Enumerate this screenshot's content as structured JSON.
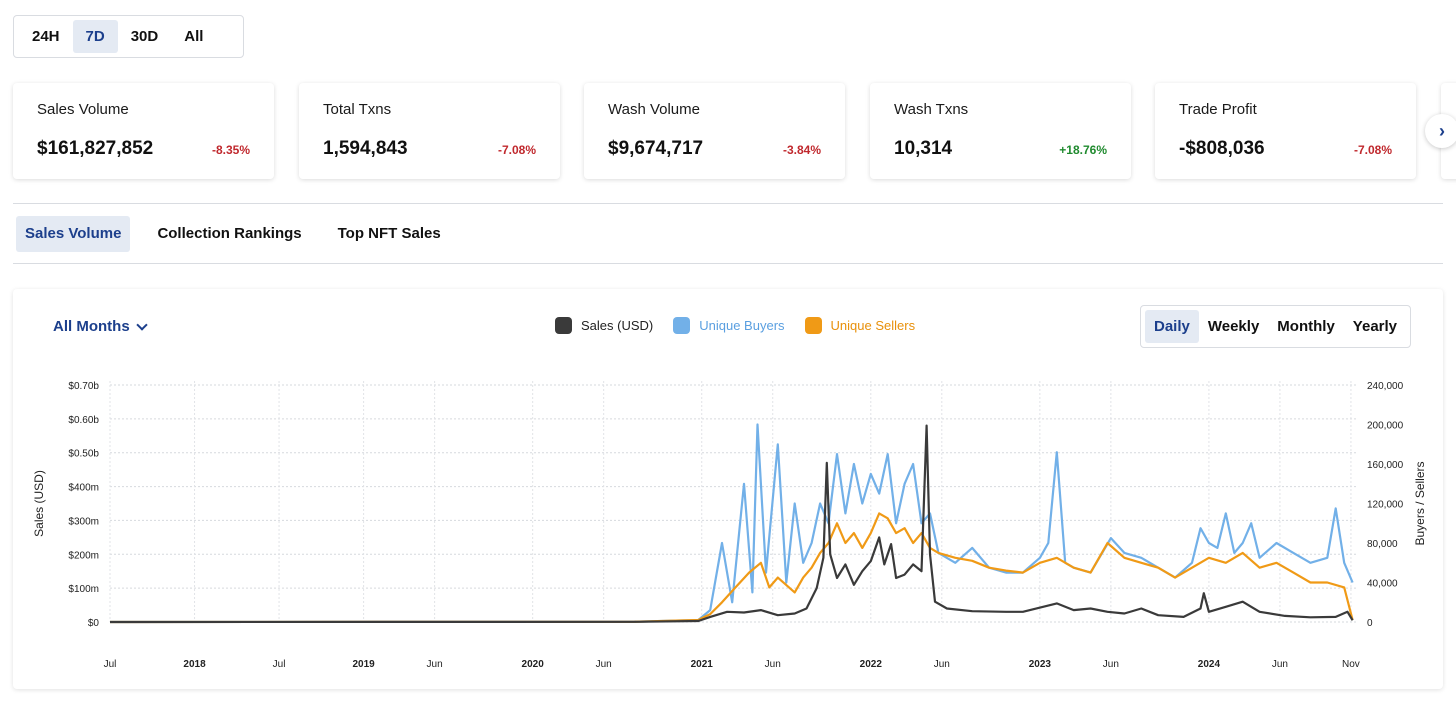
{
  "period_selector": {
    "options": [
      "24H",
      "7D",
      "30D",
      "All"
    ],
    "selected": "7D"
  },
  "stats": [
    {
      "title": "Sales Volume",
      "value": "$161,827,852",
      "change": "-8.35%",
      "direction": "down"
    },
    {
      "title": "Total Txns",
      "value": "1,594,843",
      "change": "-7.08%",
      "direction": "down"
    },
    {
      "title": "Wash Volume",
      "value": "$9,674,717",
      "change": "-3.84%",
      "direction": "down"
    },
    {
      "title": "Wash Txns",
      "value": "10,314",
      "change": "+18.76%",
      "direction": "up"
    },
    {
      "title": "Trade Profit",
      "value": "-$808,036",
      "change": "-7.08%",
      "direction": "down"
    }
  ],
  "next_icon": "chevron-right-icon",
  "tabs": [
    {
      "label": "Sales Volume",
      "active": true
    },
    {
      "label": "Collection Rankings",
      "active": false
    },
    {
      "label": "Top NFT Sales",
      "active": false
    }
  ],
  "chart_panel": {
    "months_filter": "All Months",
    "legend": [
      {
        "label": "Sales (USD)",
        "color": "#3a3a3a"
      },
      {
        "label": "Unique Buyers",
        "color": "#72b0e8"
      },
      {
        "label": "Unique Sellers",
        "color": "#f09a16"
      }
    ],
    "granularity": {
      "options": [
        "Daily",
        "Weekly",
        "Monthly",
        "Yearly"
      ],
      "selected": "Daily"
    }
  },
  "chart_data": {
    "type": "line",
    "ylabel": "Sales (USD)",
    "y2label": "Buyers / Sellers",
    "y_ticks": [
      "$0",
      "$100m",
      "$200m",
      "$300m",
      "$400m",
      "$0.50b",
      "$0.60b",
      "$0.70b"
    ],
    "y2_ticks": [
      "0",
      "40,000",
      "80,000",
      "120,000",
      "160,000",
      "200,000",
      "240,000"
    ],
    "x_ticks": [
      {
        "label": "Jul",
        "bold": false,
        "t": 2017.5
      },
      {
        "label": "2018",
        "bold": true,
        "t": 2018.0
      },
      {
        "label": "Jul",
        "bold": false,
        "t": 2018.5
      },
      {
        "label": "2019",
        "bold": true,
        "t": 2019.0
      },
      {
        "label": "Jun",
        "bold": false,
        "t": 2019.42
      },
      {
        "label": "2020",
        "bold": true,
        "t": 2020.0
      },
      {
        "label": "Jun",
        "bold": false,
        "t": 2020.42
      },
      {
        "label": "2021",
        "bold": true,
        "t": 2021.0
      },
      {
        "label": "Jun",
        "bold": false,
        "t": 2021.42
      },
      {
        "label": "2022",
        "bold": true,
        "t": 2022.0
      },
      {
        "label": "Jun",
        "bold": false,
        "t": 2022.42
      },
      {
        "label": "2023",
        "bold": true,
        "t": 2023.0
      },
      {
        "label": "Jun",
        "bold": false,
        "t": 2023.42
      },
      {
        "label": "2024",
        "bold": true,
        "t": 2024.0
      },
      {
        "label": "Jun",
        "bold": false,
        "t": 2024.42
      },
      {
        "label": "Nov",
        "bold": false,
        "t": 2024.84
      }
    ],
    "x_range": [
      2017.5,
      2024.87
    ],
    "y_range_usd": [
      0,
      700000000
    ],
    "y2_range": [
      0,
      240000
    ],
    "series": [
      {
        "name": "Sales (USD)",
        "axis": "left",
        "color": "#3a3a3a",
        "points": [
          [
            2017.5,
            0
          ],
          [
            2020.6,
            500000
          ],
          [
            2020.98,
            3000000
          ],
          [
            2021.05,
            15000000
          ],
          [
            2021.15,
            30000000
          ],
          [
            2021.25,
            28000000
          ],
          [
            2021.35,
            35000000
          ],
          [
            2021.45,
            20000000
          ],
          [
            2021.55,
            25000000
          ],
          [
            2021.62,
            40000000
          ],
          [
            2021.68,
            100000000
          ],
          [
            2021.72,
            190000000
          ],
          [
            2021.74,
            470000000
          ],
          [
            2021.76,
            200000000
          ],
          [
            2021.8,
            130000000
          ],
          [
            2021.85,
            170000000
          ],
          [
            2021.9,
            110000000
          ],
          [
            2021.95,
            150000000
          ],
          [
            2022.0,
            180000000
          ],
          [
            2022.05,
            250000000
          ],
          [
            2022.08,
            170000000
          ],
          [
            2022.12,
            230000000
          ],
          [
            2022.15,
            130000000
          ],
          [
            2022.2,
            140000000
          ],
          [
            2022.25,
            170000000
          ],
          [
            2022.3,
            150000000
          ],
          [
            2022.33,
            580000000
          ],
          [
            2022.35,
            200000000
          ],
          [
            2022.38,
            60000000
          ],
          [
            2022.45,
            40000000
          ],
          [
            2022.6,
            32000000
          ],
          [
            2022.8,
            30000000
          ],
          [
            2022.9,
            30000000
          ],
          [
            2023.1,
            55000000
          ],
          [
            2023.2,
            35000000
          ],
          [
            2023.3,
            40000000
          ],
          [
            2023.4,
            30000000
          ],
          [
            2023.5,
            25000000
          ],
          [
            2023.6,
            40000000
          ],
          [
            2023.7,
            20000000
          ],
          [
            2023.85,
            15000000
          ],
          [
            2023.95,
            40000000
          ],
          [
            2023.97,
            85000000
          ],
          [
            2024.0,
            30000000
          ],
          [
            2024.1,
            45000000
          ],
          [
            2024.2,
            60000000
          ],
          [
            2024.25,
            45000000
          ],
          [
            2024.3,
            30000000
          ],
          [
            2024.45,
            18000000
          ],
          [
            2024.6,
            14000000
          ],
          [
            2024.75,
            15000000
          ],
          [
            2024.82,
            30000000
          ],
          [
            2024.85,
            5000000
          ]
        ]
      },
      {
        "name": "Unique Buyers",
        "axis": "right",
        "color": "#72b0e8",
        "points": [
          [
            2017.5,
            0
          ],
          [
            2020.6,
            200
          ],
          [
            2020.98,
            2000
          ],
          [
            2021.05,
            12000
          ],
          [
            2021.12,
            80000
          ],
          [
            2021.18,
            20000
          ],
          [
            2021.25,
            140000
          ],
          [
            2021.3,
            30000
          ],
          [
            2021.33,
            200000
          ],
          [
            2021.38,
            50000
          ],
          [
            2021.45,
            180000
          ],
          [
            2021.5,
            40000
          ],
          [
            2021.55,
            120000
          ],
          [
            2021.6,
            60000
          ],
          [
            2021.65,
            80000
          ],
          [
            2021.7,
            120000
          ],
          [
            2021.75,
            100000
          ],
          [
            2021.8,
            170000
          ],
          [
            2021.85,
            110000
          ],
          [
            2021.9,
            160000
          ],
          [
            2021.95,
            120000
          ],
          [
            2022.0,
            150000
          ],
          [
            2022.05,
            130000
          ],
          [
            2022.1,
            170000
          ],
          [
            2022.15,
            100000
          ],
          [
            2022.2,
            140000
          ],
          [
            2022.25,
            160000
          ],
          [
            2022.3,
            100000
          ],
          [
            2022.35,
            110000
          ],
          [
            2022.4,
            70000
          ],
          [
            2022.5,
            60000
          ],
          [
            2022.6,
            75000
          ],
          [
            2022.7,
            55000
          ],
          [
            2022.8,
            50000
          ],
          [
            2022.9,
            50000
          ],
          [
            2023.0,
            65000
          ],
          [
            2023.05,
            80000
          ],
          [
            2023.1,
            172000
          ],
          [
            2023.15,
            60000
          ],
          [
            2023.2,
            55000
          ],
          [
            2023.3,
            50000
          ],
          [
            2023.42,
            85000
          ],
          [
            2023.5,
            70000
          ],
          [
            2023.6,
            65000
          ],
          [
            2023.7,
            55000
          ],
          [
            2023.8,
            45000
          ],
          [
            2023.9,
            60000
          ],
          [
            2023.95,
            95000
          ],
          [
            2024.0,
            80000
          ],
          [
            2024.05,
            75000
          ],
          [
            2024.1,
            110000
          ],
          [
            2024.15,
            70000
          ],
          [
            2024.2,
            80000
          ],
          [
            2024.25,
            100000
          ],
          [
            2024.3,
            65000
          ],
          [
            2024.4,
            80000
          ],
          [
            2024.5,
            70000
          ],
          [
            2024.6,
            60000
          ],
          [
            2024.7,
            65000
          ],
          [
            2024.75,
            115000
          ],
          [
            2024.8,
            60000
          ],
          [
            2024.85,
            40000
          ]
        ]
      },
      {
        "name": "Unique Sellers",
        "axis": "right",
        "color": "#f09a16",
        "points": [
          [
            2017.5,
            0
          ],
          [
            2020.6,
            200
          ],
          [
            2020.98,
            2000
          ],
          [
            2021.05,
            8000
          ],
          [
            2021.12,
            20000
          ],
          [
            2021.2,
            35000
          ],
          [
            2021.28,
            50000
          ],
          [
            2021.35,
            60000
          ],
          [
            2021.4,
            35000
          ],
          [
            2021.45,
            45000
          ],
          [
            2021.55,
            30000
          ],
          [
            2021.6,
            45000
          ],
          [
            2021.65,
            55000
          ],
          [
            2021.7,
            70000
          ],
          [
            2021.75,
            80000
          ],
          [
            2021.8,
            100000
          ],
          [
            2021.85,
            80000
          ],
          [
            2021.9,
            90000
          ],
          [
            2021.95,
            75000
          ],
          [
            2022.0,
            90000
          ],
          [
            2022.05,
            110000
          ],
          [
            2022.1,
            105000
          ],
          [
            2022.15,
            90000
          ],
          [
            2022.2,
            95000
          ],
          [
            2022.25,
            80000
          ],
          [
            2022.3,
            90000
          ],
          [
            2022.35,
            75000
          ],
          [
            2022.4,
            70000
          ],
          [
            2022.5,
            65000
          ],
          [
            2022.6,
            62000
          ],
          [
            2022.7,
            55000
          ],
          [
            2022.8,
            52000
          ],
          [
            2022.9,
            50000
          ],
          [
            2023.0,
            60000
          ],
          [
            2023.1,
            65000
          ],
          [
            2023.2,
            55000
          ],
          [
            2023.3,
            50000
          ],
          [
            2023.4,
            80000
          ],
          [
            2023.5,
            65000
          ],
          [
            2023.6,
            60000
          ],
          [
            2023.7,
            55000
          ],
          [
            2023.8,
            45000
          ],
          [
            2023.9,
            55000
          ],
          [
            2024.0,
            65000
          ],
          [
            2024.1,
            60000
          ],
          [
            2024.2,
            70000
          ],
          [
            2024.3,
            55000
          ],
          [
            2024.4,
            60000
          ],
          [
            2024.5,
            50000
          ],
          [
            2024.6,
            40000
          ],
          [
            2024.7,
            40000
          ],
          [
            2024.8,
            35000
          ],
          [
            2024.85,
            2000
          ]
        ]
      }
    ]
  }
}
